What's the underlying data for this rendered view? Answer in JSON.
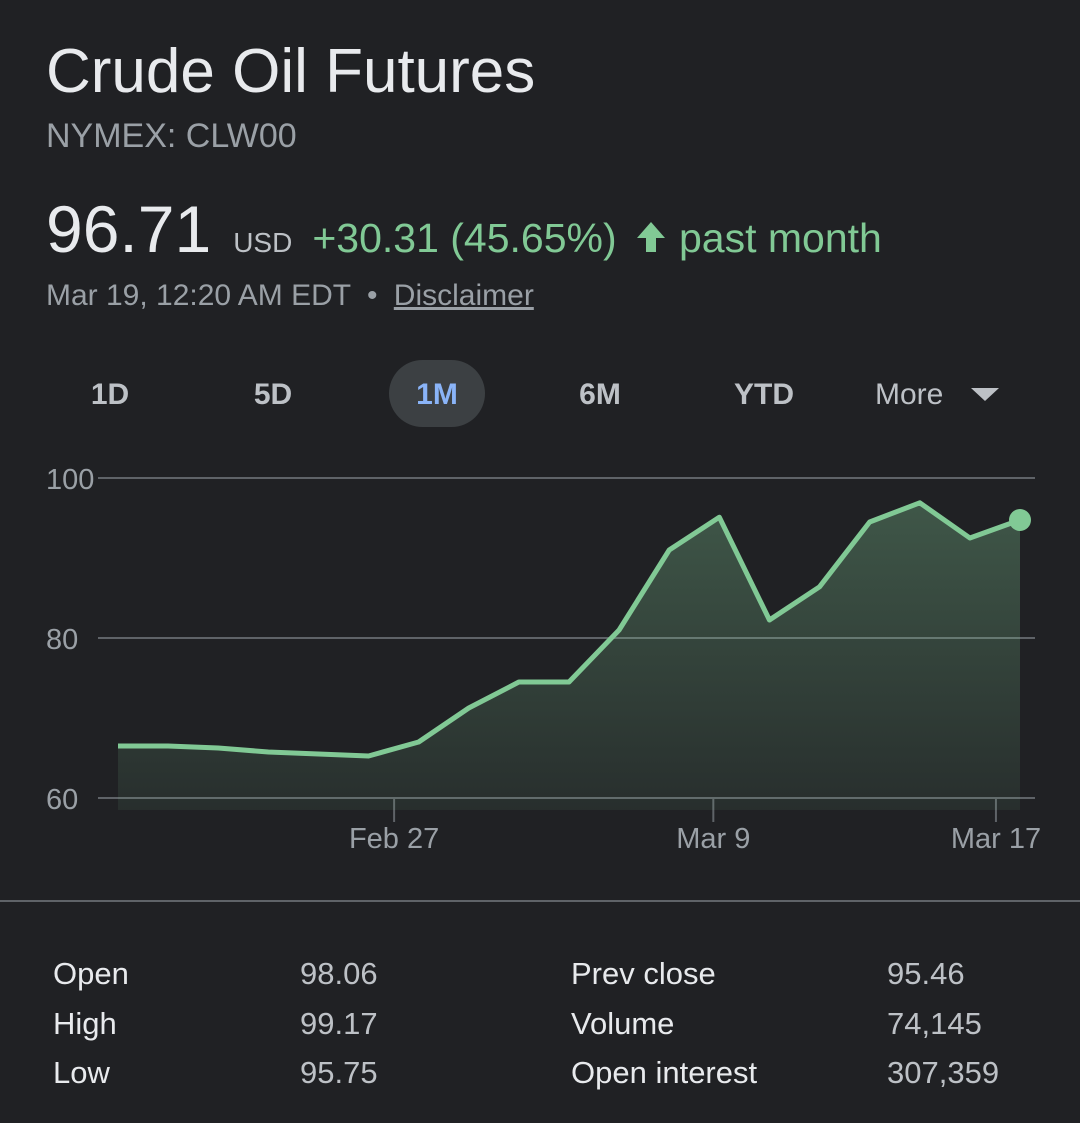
{
  "header": {
    "title": "Crude Oil Futures",
    "symbol": "NYMEX: CLW00"
  },
  "quote": {
    "price": "96.71",
    "currency": "USD",
    "change": "+30.31 (45.65%)",
    "period": "past month",
    "timestamp": "Mar 19, 12:20 AM EDT",
    "separator": "•",
    "disclaimer": "Disclaimer"
  },
  "tabs": {
    "items": [
      "1D",
      "5D",
      "1M",
      "6M",
      "YTD",
      "More"
    ],
    "active": 2
  },
  "chart_data": {
    "type": "line",
    "x": [
      0,
      1,
      2,
      3,
      4,
      5,
      6,
      7,
      8,
      9,
      10,
      11,
      12,
      13,
      14,
      15,
      16,
      17,
      18
    ],
    "series": [
      {
        "color": "#81c995",
        "values": [
          66.5,
          66.5,
          66.25,
          65.75,
          65.5,
          65.25,
          67,
          71.25,
          74.5,
          74.5,
          81,
          91,
          95.1,
          82.25,
          86.4,
          94.5,
          96.9,
          92.5,
          94.75
        ]
      }
    ],
    "xlim": [
      0,
      18
    ],
    "xticks": [
      {
        "value": 5.51,
        "label": "Feb 27"
      },
      {
        "value": 11.88,
        "label": "Mar 9"
      },
      {
        "value": 17.52,
        "label": "Mar 17"
      }
    ],
    "ylim": [
      60,
      100
    ],
    "yticks": [
      60,
      80,
      100
    ],
    "grid": true
  },
  "stats": {
    "rows": [
      [
        "Open",
        "98.06",
        "Prev close",
        "95.46"
      ],
      [
        "High",
        "99.17",
        "Volume",
        "74,145"
      ],
      [
        "Low",
        "95.75",
        "Open interest",
        "307,359"
      ]
    ]
  }
}
